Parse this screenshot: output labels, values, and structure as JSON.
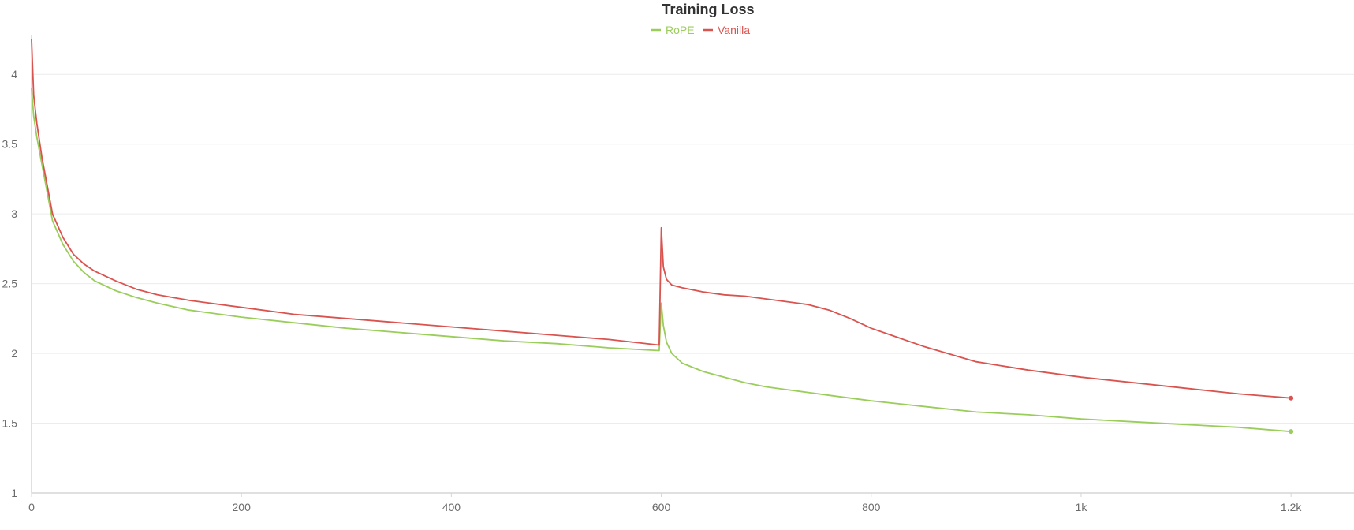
{
  "chart_data": {
    "type": "line",
    "title": "Training Loss",
    "xlabel": "",
    "ylabel": "",
    "xlim": [
      0,
      1260
    ],
    "ylim": [
      1,
      4.25
    ],
    "x_ticks": [
      0,
      200,
      400,
      600,
      800,
      1000,
      1200
    ],
    "x_tick_labels": [
      "0",
      "200",
      "400",
      "600",
      "800",
      "1k",
      "1.2k"
    ],
    "y_ticks": [
      1,
      1.5,
      2,
      2.5,
      3,
      3.5,
      4
    ],
    "y_tick_labels": [
      "1",
      "1.5",
      "2",
      "2.5",
      "3",
      "3.5",
      "4"
    ],
    "grid": true,
    "legend_position": "top-center",
    "series": [
      {
        "name": "RoPE",
        "color": "#9acd5b",
        "x": [
          0,
          2,
          5,
          10,
          15,
          20,
          30,
          40,
          50,
          60,
          80,
          100,
          120,
          150,
          200,
          250,
          300,
          350,
          400,
          450,
          500,
          550,
          598,
          600,
          602,
          605,
          610,
          620,
          640,
          660,
          680,
          700,
          720,
          740,
          760,
          780,
          800,
          850,
          900,
          950,
          1000,
          1050,
          1100,
          1150,
          1200
        ],
        "values": [
          3.9,
          3.7,
          3.55,
          3.35,
          3.15,
          2.95,
          2.78,
          2.66,
          2.58,
          2.52,
          2.45,
          2.4,
          2.36,
          2.31,
          2.26,
          2.22,
          2.18,
          2.15,
          2.12,
          2.09,
          2.07,
          2.04,
          2.02,
          2.36,
          2.2,
          2.08,
          2.0,
          1.93,
          1.87,
          1.83,
          1.79,
          1.76,
          1.74,
          1.72,
          1.7,
          1.68,
          1.66,
          1.62,
          1.58,
          1.56,
          1.53,
          1.51,
          1.49,
          1.47,
          1.44
        ]
      },
      {
        "name": "Vanilla",
        "color": "#d9534f",
        "x": [
          0,
          2,
          5,
          10,
          15,
          20,
          30,
          40,
          50,
          60,
          80,
          100,
          120,
          150,
          200,
          250,
          300,
          350,
          400,
          450,
          500,
          550,
          598,
          600,
          602,
          605,
          610,
          620,
          640,
          660,
          680,
          700,
          720,
          740,
          760,
          780,
          800,
          850,
          900,
          950,
          1000,
          1050,
          1100,
          1150,
          1200
        ],
        "values": [
          4.25,
          3.85,
          3.65,
          3.4,
          3.2,
          3.0,
          2.83,
          2.71,
          2.64,
          2.59,
          2.52,
          2.46,
          2.42,
          2.38,
          2.33,
          2.28,
          2.25,
          2.22,
          2.19,
          2.16,
          2.13,
          2.1,
          2.06,
          2.9,
          2.62,
          2.53,
          2.49,
          2.47,
          2.44,
          2.42,
          2.41,
          2.39,
          2.37,
          2.35,
          2.31,
          2.25,
          2.18,
          2.05,
          1.94,
          1.88,
          1.83,
          1.79,
          1.75,
          1.71,
          1.68
        ]
      }
    ]
  }
}
